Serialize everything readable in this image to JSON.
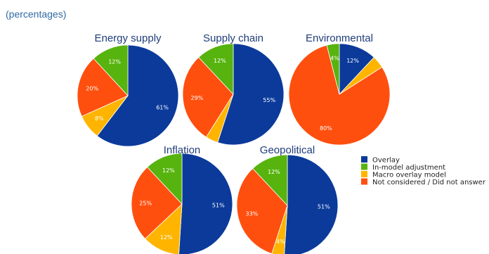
{
  "subtitle": "(percentages)",
  "legend": [
    {
      "label": "Overlay",
      "color": "#0b3a9a"
    },
    {
      "label": "In-model adjustment",
      "color": "#57b30e"
    },
    {
      "label": "Macro overlay model",
      "color": "#ffb500"
    },
    {
      "label": "Not considered / Did not answer",
      "color": "#ff4f0e"
    }
  ],
  "chart_data": [
    {
      "type": "pie",
      "title": "Energy supply",
      "slices": [
        {
          "category": "Overlay",
          "value": 61,
          "label": "61%"
        },
        {
          "category": "Macro overlay model",
          "value": 8,
          "label": "8%"
        },
        {
          "category": "Not considered / Did not answer",
          "value": 20,
          "label": "20%"
        },
        {
          "category": "In-model adjustment",
          "value": 12,
          "label": "12%"
        }
      ]
    },
    {
      "type": "pie",
      "title": "Supply chain",
      "slices": [
        {
          "category": "Overlay",
          "value": 55,
          "label": "55%"
        },
        {
          "category": "Macro overlay model",
          "value": 4,
          "label": ""
        },
        {
          "category": "Not considered / Did not answer",
          "value": 29,
          "label": "29%"
        },
        {
          "category": "In-model adjustment",
          "value": 12,
          "label": "12%"
        }
      ]
    },
    {
      "type": "pie",
      "title": "Environmental",
      "slices": [
        {
          "category": "Overlay",
          "value": 12,
          "label": "12%"
        },
        {
          "category": "Macro overlay model",
          "value": 4,
          "label": ""
        },
        {
          "category": "Not considered / Did not answer",
          "value": 80,
          "label": "80%"
        },
        {
          "category": "In-model adjustment",
          "value": 4,
          "label": "4%"
        }
      ]
    },
    {
      "type": "pie",
      "title": "Inflation",
      "slices": [
        {
          "category": "Overlay",
          "value": 51,
          "label": "51%"
        },
        {
          "category": "Macro overlay model",
          "value": 12,
          "label": "12%"
        },
        {
          "category": "Not considered / Did not answer",
          "value": 25,
          "label": "25%"
        },
        {
          "category": "In-model adjustment",
          "value": 12,
          "label": "12%"
        }
      ]
    },
    {
      "type": "pie",
      "title": "Geopolitical",
      "slices": [
        {
          "category": "Overlay",
          "value": 51,
          "label": "51%"
        },
        {
          "category": "Macro overlay model",
          "value": 4,
          "label": "4%"
        },
        {
          "category": "Not considered / Did not answer",
          "value": 33,
          "label": "33%"
        },
        {
          "category": "In-model adjustment",
          "value": 12,
          "label": "12%"
        }
      ]
    }
  ]
}
